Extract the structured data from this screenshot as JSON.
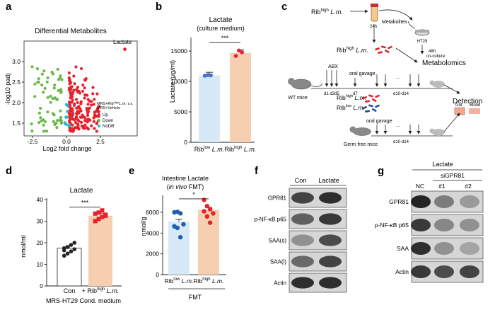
{
  "panel_letters": {
    "a": "a",
    "b": "b",
    "c": "c",
    "d": "d",
    "e": "e",
    "f": "f",
    "g": "g"
  },
  "panel_a": {
    "title": "Differential Metabolites",
    "ylabel": "-log10 padj",
    "xlabel": "Log2 fold change",
    "xticks": [
      "-2.5",
      "0.0",
      "2.5"
    ],
    "yticks": [
      "3.0",
      "2.5",
      "2.0",
      "1.5"
    ],
    "annotation": "Lactate",
    "legend_title_line1": "MRS+Rib",
    "legend_title_sup": "high",
    "legend_title_line1b": "L.m. v.s.",
    "legend_title_line2": "MRS+Vehicle",
    "legend": [
      {
        "label": "Up",
        "color": "#e8202a"
      },
      {
        "label": "Down",
        "color": "#6ab84a"
      },
      {
        "label": "NoDiff",
        "color": "#25b9c8"
      }
    ]
  },
  "panel_b": {
    "title": "Lactate",
    "subtitle": "(culture medium)",
    "ylabel": "Lactate (μg/ml)",
    "yticks": [
      "0",
      "5000",
      "10000",
      "15000"
    ],
    "sig": "***",
    "groups": [
      {
        "pre": "Rib",
        "sup": "low",
        "post": " L.m.",
        "mean": 11000,
        "fill": "#d7e9f7",
        "stroke": "#4472c4",
        "dots": [
          10950,
          11050,
          11000
        ]
      },
      {
        "pre": "Rib",
        "sup": "high",
        "post": " L.m.",
        "mean": 14700,
        "fill": "#f6cfb0",
        "stroke": "#e8202a",
        "dots": [
          14200,
          15100,
          14800
        ]
      }
    ],
    "chart_data": {
      "type": "bar",
      "categories": [
        "Rib low L.m.",
        "Rib high L.m."
      ],
      "values": [
        11000,
        14700
      ],
      "ylim": [
        0,
        16000
      ],
      "ylabel": "Lactate (μg/ml)",
      "title": "Lactate"
    }
  },
  "panel_c": {
    "top_strain_pre": "Rib",
    "top_strain_sup": "high",
    "top_strain_post": " L.m.",
    "t24": "24h",
    "metabolites": "Metabolites",
    "ht29": "HT29",
    "coculture_48": "48h",
    "coculture": "co-culture",
    "metabolomics": "Metabolomics",
    "mid_strain_pre": "Rib",
    "mid_strain_sup": "high",
    "mid_strain_post": " L.m.",
    "abx": "ABX",
    "d1d3d5": "d1 d3d5",
    "oral_gavage": "oral gavage",
    "d7": "d7",
    "d10d14": "d10-d14",
    "wt": "WT mice",
    "detection": "Detection",
    "gut": "Gut",
    "blood": "Blood",
    "s_high_pre": "Rib",
    "s_high_sup": "high",
    "s_high_post": " L.m.",
    "s_low_pre": "Rib",
    "s_low_sup": "low",
    "s_low_post": " L.m.",
    "oral_gavage2": "oral gavage",
    "gf": "Germ free mice",
    "d10d14_2": "d10-d14",
    "dots": "..."
  },
  "panel_d": {
    "title": "Lactate",
    "ylabel": "nmol/ml",
    "yticks": [
      "0",
      "10",
      "20",
      "30",
      "40"
    ],
    "sig": "***",
    "x1": "Con",
    "x2_pre": "+ Rib",
    "x2_sup": "high",
    "x2_post": " L.m.",
    "footer": "MRS-HT29 Cond. medium",
    "groups": [
      {
        "mean": 17.5,
        "fill": "#ffffff",
        "stroke": "#222",
        "dots": [
          14,
          15,
          16,
          17,
          17.5,
          18,
          19,
          20,
          16.5
        ]
      },
      {
        "mean": 32.5,
        "fill": "#f6cfb0",
        "stroke": "#e8202a",
        "dots": [
          30,
          31,
          32,
          33,
          33.5,
          34,
          35,
          32.5
        ]
      }
    ],
    "chart_data": {
      "type": "bar",
      "categories": [
        "Con",
        "+ Rib high L.m."
      ],
      "values": [
        17.5,
        32.5
      ],
      "ylim": [
        0,
        40
      ],
      "ylabel": "nmol/ml",
      "title": "Lactate"
    }
  },
  "panel_e": {
    "title": "Intestine Lactate",
    "subtitle_pre": "(",
    "subtitle_it": "in vivo",
    "subtitle_post": " FMT)",
    "ylabel": "nmol/g",
    "yticks": [
      "0",
      "2000",
      "4000",
      "6000"
    ],
    "sig": "*",
    "x1_pre": "Rib",
    "x1_sup": "low",
    "x1_post": " L.m.",
    "x2_pre": "Rib",
    "x2_sup": "high",
    "x2_post": " L.m.",
    "footer": "FMT",
    "groups": [
      {
        "mean": 5100,
        "fill": "#d7e9f7",
        "stroke": "#1f5fb0",
        "dots": [
          6000,
          6050,
          5900,
          4850,
          4650,
          4500,
          3600
        ]
      },
      {
        "mean": 6250,
        "fill": "#f6cfb0",
        "stroke": "#e8202a",
        "dots": [
          7200,
          6600,
          6300,
          5900,
          6100,
          5600,
          5000
        ]
      }
    ],
    "chart_data": {
      "type": "bar",
      "categories": [
        "Rib low L.m.",
        "Rib high L.m."
      ],
      "values": [
        5100,
        6250
      ],
      "ylim": [
        0,
        7500
      ],
      "ylabel": "nmol/g",
      "title": "Intestine Lactate"
    }
  },
  "panel_f": {
    "cols": [
      "Con",
      "Lactate"
    ],
    "rows": [
      "GPR81",
      "p-NF-κB p65",
      "SAA(s)",
      "SAA(l)",
      "Actin"
    ]
  },
  "panel_g": {
    "header": "Lactate",
    "sub": "siGPR81",
    "cols": [
      "NC",
      "#1",
      "#2"
    ],
    "rows": [
      "GPR81",
      "p-NF-κB p65",
      "SAA",
      "Actin"
    ]
  }
}
